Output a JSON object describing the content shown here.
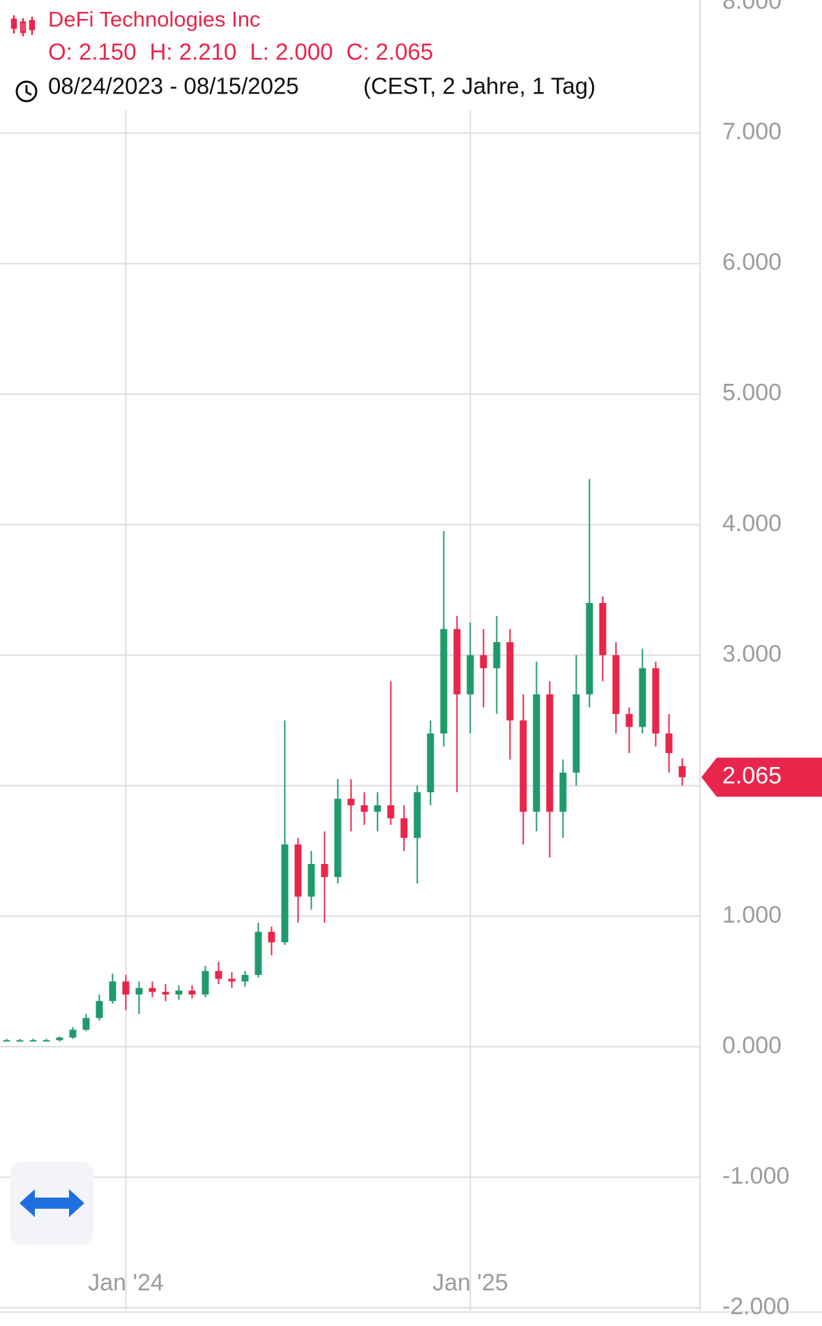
{
  "chart_data": {
    "type": "candlestick",
    "title": "DeFi Technologies Inc",
    "ohlc": [
      "O: 2.150",
      "H: 2.210",
      "L: 2.000",
      "C: 2.065"
    ],
    "date_range": "08/24/2023 - 08/15/2025",
    "range_note": "(CEST, 2 Jahre, 1 Tag)",
    "categories": [
      null,
      null,
      null,
      null,
      null,
      null,
      null,
      null,
      null,
      "Jan '24",
      null,
      null,
      null,
      null,
      null,
      null,
      null,
      null,
      null,
      null,
      null,
      null,
      null,
      null,
      null,
      null,
      null,
      null,
      null,
      null,
      null,
      null,
      null,
      null,
      null,
      "Jan '25",
      null,
      null,
      null,
      null,
      null,
      null,
      null,
      null,
      null,
      null,
      null,
      null,
      null,
      null,
      null,
      null
    ],
    "open": [
      0.05,
      0.05,
      0.05,
      0.05,
      0.05,
      0.07,
      0.13,
      0.22,
      0.35,
      0.5,
      0.4,
      0.45,
      0.42,
      0.4,
      0.43,
      0.4,
      0.58,
      0.52,
      0.5,
      0.55,
      0.88,
      0.8,
      1.55,
      1.15,
      1.4,
      1.3,
      1.9,
      1.85,
      1.8,
      1.85,
      1.75,
      1.6,
      1.95,
      2.4,
      3.2,
      2.7,
      3.0,
      2.9,
      3.1,
      2.5,
      1.8,
      2.7,
      1.8,
      2.1,
      2.7,
      3.4,
      3.0,
      2.55,
      2.45,
      2.9,
      2.4,
      2.15
    ],
    "high": [
      0.06,
      0.06,
      0.06,
      0.06,
      0.08,
      0.15,
      0.25,
      0.4,
      0.56,
      0.55,
      0.5,
      0.5,
      0.48,
      0.47,
      0.47,
      0.62,
      0.65,
      0.57,
      0.58,
      0.95,
      0.92,
      2.5,
      1.6,
      1.5,
      1.65,
      2.05,
      2.05,
      1.95,
      1.95,
      2.8,
      1.85,
      2.0,
      2.5,
      3.95,
      3.3,
      3.25,
      3.2,
      3.3,
      3.2,
      2.7,
      2.95,
      2.8,
      2.2,
      3.0,
      4.35,
      3.45,
      3.1,
      2.6,
      3.05,
      2.95,
      2.55,
      2.21
    ],
    "low": [
      0.04,
      0.04,
      0.04,
      0.04,
      0.04,
      0.06,
      0.12,
      0.2,
      0.33,
      0.28,
      0.25,
      0.38,
      0.35,
      0.36,
      0.37,
      0.38,
      0.48,
      0.45,
      0.46,
      0.53,
      0.7,
      0.78,
      0.95,
      1.05,
      0.95,
      1.25,
      1.65,
      1.7,
      1.65,
      1.7,
      1.5,
      1.25,
      1.85,
      2.3,
      1.95,
      2.4,
      2.6,
      2.55,
      2.2,
      1.55,
      1.65,
      1.45,
      1.6,
      2.0,
      2.6,
      2.8,
      2.4,
      2.25,
      2.4,
      2.3,
      2.1,
      2.0
    ],
    "close": [
      0.05,
      0.05,
      0.05,
      0.05,
      0.07,
      0.13,
      0.22,
      0.35,
      0.5,
      0.4,
      0.45,
      0.42,
      0.4,
      0.43,
      0.4,
      0.58,
      0.52,
      0.5,
      0.55,
      0.88,
      0.8,
      1.55,
      1.15,
      1.4,
      1.3,
      1.9,
      1.85,
      1.8,
      1.85,
      1.75,
      1.6,
      1.95,
      2.4,
      3.2,
      2.7,
      3.0,
      2.9,
      3.1,
      2.5,
      1.8,
      2.7,
      1.8,
      2.1,
      2.7,
      3.4,
      3.0,
      2.55,
      2.45,
      2.9,
      2.4,
      2.25,
      2.065
    ],
    "up_color": "#1f9a6b",
    "down_color": "#e8254a",
    "last_price": {
      "value": 2.065,
      "label": "2.065"
    },
    "ylim": [
      -2.14,
      8.02
    ],
    "yticks": [
      {
        "value": 8,
        "label": "8.000"
      },
      {
        "value": 7,
        "label": "7.000"
      },
      {
        "value": 6,
        "label": "6.000"
      },
      {
        "value": 5,
        "label": "5.000"
      },
      {
        "value": 4,
        "label": "4.000"
      },
      {
        "value": 3,
        "label": "3.000"
      },
      {
        "value": 2,
        "label": "2.000"
      },
      {
        "value": 1,
        "label": "1.000"
      },
      {
        "value": 0,
        "label": "0.000"
      },
      {
        "value": -1,
        "label": "-1.000"
      },
      {
        "value": -2,
        "label": "-2.000"
      }
    ],
    "grid": true
  }
}
